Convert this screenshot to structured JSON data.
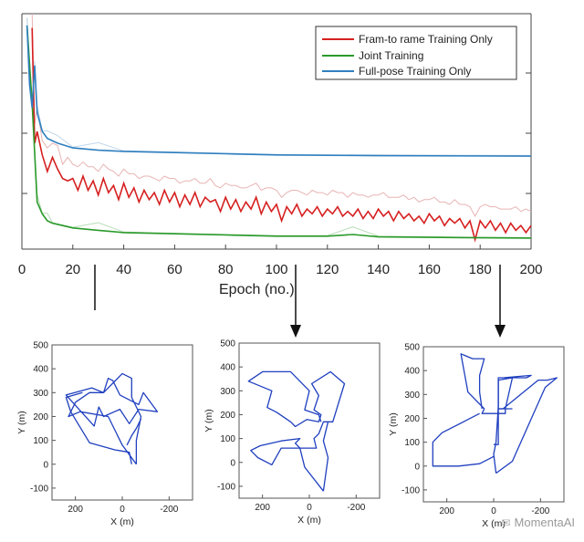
{
  "chart_data": [
    {
      "type": "line",
      "title": "",
      "xlabel": "Epoch (no.)",
      "ylabel": "",
      "xlim": [
        0,
        200
      ],
      "ylim": [
        0,
        1
      ],
      "xticks": [
        "0",
        "20",
        "40",
        "60",
        "80",
        "100",
        "120",
        "140",
        "160",
        "180",
        "200"
      ],
      "grid": false,
      "legend_position": "top-right",
      "series": [
        {
          "name": "Fram-to rame Training Only",
          "color": "#d62020",
          "faint_color": "#e8b4b4",
          "points": [
            [
              4,
              0.94
            ],
            [
              5,
              0.45
            ],
            [
              6,
              0.5
            ],
            [
              8,
              0.4
            ],
            [
              10,
              0.33
            ],
            [
              12,
              0.39
            ],
            [
              14,
              0.34
            ],
            [
              16,
              0.3
            ],
            [
              18,
              0.29
            ],
            [
              20,
              0.3
            ],
            [
              22,
              0.25
            ],
            [
              24,
              0.31
            ],
            [
              26,
              0.25
            ],
            [
              28,
              0.29
            ],
            [
              30,
              0.23
            ],
            [
              32,
              0.3
            ],
            [
              34,
              0.24
            ],
            [
              36,
              0.27
            ],
            [
              38,
              0.21
            ],
            [
              40,
              0.28
            ],
            [
              42,
              0.22
            ],
            [
              44,
              0.26
            ],
            [
              46,
              0.2
            ],
            [
              48,
              0.25
            ],
            [
              50,
              0.21
            ],
            [
              52,
              0.24
            ],
            [
              54,
              0.19
            ],
            [
              56,
              0.25
            ],
            [
              58,
              0.2
            ],
            [
              60,
              0.24
            ],
            [
              62,
              0.18
            ],
            [
              64,
              0.23
            ],
            [
              66,
              0.19
            ],
            [
              68,
              0.24
            ],
            [
              70,
              0.18
            ],
            [
              72,
              0.22
            ],
            [
              74,
              0.2
            ],
            [
              76,
              0.21
            ],
            [
              78,
              0.16
            ],
            [
              80,
              0.22
            ],
            [
              82,
              0.17
            ],
            [
              84,
              0.21
            ],
            [
              86,
              0.16
            ],
            [
              88,
              0.2
            ],
            [
              90,
              0.17
            ],
            [
              92,
              0.22
            ],
            [
              94,
              0.15
            ],
            [
              96,
              0.2
            ],
            [
              98,
              0.16
            ],
            [
              100,
              0.19
            ],
            [
              102,
              0.12
            ],
            [
              104,
              0.18
            ],
            [
              106,
              0.15
            ],
            [
              108,
              0.19
            ],
            [
              110,
              0.14
            ],
            [
              112,
              0.17
            ],
            [
              114,
              0.15
            ],
            [
              116,
              0.18
            ],
            [
              118,
              0.14
            ],
            [
              120,
              0.17
            ],
            [
              122,
              0.15
            ],
            [
              124,
              0.18
            ],
            [
              126,
              0.14
            ],
            [
              128,
              0.16
            ],
            [
              130,
              0.14
            ],
            [
              132,
              0.17
            ],
            [
              134,
              0.13
            ],
            [
              136,
              0.16
            ],
            [
              138,
              0.13
            ],
            [
              140,
              0.17
            ],
            [
              142,
              0.14
            ],
            [
              144,
              0.16
            ],
            [
              146,
              0.12
            ],
            [
              148,
              0.16
            ],
            [
              150,
              0.13
            ],
            [
              152,
              0.15
            ],
            [
              154,
              0.12
            ],
            [
              156,
              0.14
            ],
            [
              158,
              0.11
            ],
            [
              160,
              0.15
            ],
            [
              162,
              0.12
            ],
            [
              164,
              0.14
            ],
            [
              166,
              0.1
            ],
            [
              168,
              0.13
            ],
            [
              170,
              0.11
            ],
            [
              172,
              0.13
            ],
            [
              174,
              0.09
            ],
            [
              176,
              0.12
            ],
            [
              178,
              0.04
            ],
            [
              180,
              0.12
            ],
            [
              182,
              0.09
            ],
            [
              184,
              0.12
            ],
            [
              186,
              0.08
            ],
            [
              188,
              0.11
            ],
            [
              190,
              0.07
            ],
            [
              192,
              0.11
            ],
            [
              194,
              0.08
            ],
            [
              196,
              0.1
            ],
            [
              198,
              0.07
            ],
            [
              200,
              0.1
            ]
          ]
        },
        {
          "name": "Joint Training",
          "color": "#2a9a2a",
          "faint_color": "#b7dcb7",
          "points": [
            [
              2,
              0.95
            ],
            [
              4,
              0.62
            ],
            [
              6,
              0.2
            ],
            [
              8,
              0.15
            ],
            [
              10,
              0.12
            ],
            [
              12,
              0.11
            ],
            [
              16,
              0.1
            ],
            [
              20,
              0.09
            ],
            [
              30,
              0.08
            ],
            [
              40,
              0.07
            ],
            [
              60,
              0.065
            ],
            [
              80,
              0.06
            ],
            [
              100,
              0.055
            ],
            [
              120,
              0.055
            ],
            [
              130,
              0.062
            ],
            [
              140,
              0.052
            ],
            [
              160,
              0.05
            ],
            [
              180,
              0.048
            ],
            [
              200,
              0.047
            ]
          ]
        },
        {
          "name": "Full-pose Training Only",
          "color": "#2f7fbf",
          "faint_color": "#bfd6ea",
          "points": [
            [
              2,
              0.95
            ],
            [
              3,
              0.7
            ],
            [
              4,
              0.6
            ],
            [
              5,
              0.78
            ],
            [
              6,
              0.58
            ],
            [
              8,
              0.5
            ],
            [
              10,
              0.47
            ],
            [
              14,
              0.45
            ],
            [
              20,
              0.43
            ],
            [
              30,
              0.42
            ],
            [
              40,
              0.415
            ],
            [
              60,
              0.41
            ],
            [
              80,
              0.405
            ],
            [
              100,
              0.4
            ],
            [
              140,
              0.397
            ],
            [
              200,
              0.395
            ]
          ]
        }
      ]
    },
    {
      "type": "line",
      "xlabel": "X (m)",
      "ylabel": "Y (m)",
      "xlim": [
        -300,
        300
      ],
      "ylim": [
        -150,
        500
      ],
      "xticks": [
        "200",
        "0",
        "-200"
      ],
      "yticks": [
        "-100",
        "0",
        "100",
        "200",
        "300",
        "400",
        "500"
      ],
      "color": "#1f3fbf",
      "paths": [
        [
          [
            -60,
            0
          ],
          [
            -60,
            100
          ],
          [
            -80,
            200
          ],
          [
            -40,
            280
          ],
          [
            -40,
            360
          ],
          [
            0,
            380
          ],
          [
            80,
            300
          ],
          [
            130,
            320
          ],
          [
            240,
            290
          ],
          [
            120,
            160
          ],
          [
            100,
            240
          ],
          [
            80,
            200
          ],
          [
            10,
            230
          ],
          [
            -30,
            170
          ],
          [
            -70,
            230
          ],
          [
            -150,
            220
          ],
          [
            -90,
            300
          ],
          [
            -70,
            250
          ],
          [
            -30,
            270
          ],
          [
            10,
            290
          ],
          [
            40,
            350
          ],
          [
            60,
            360
          ],
          [
            80,
            300
          ],
          [
            140,
            300
          ],
          [
            200,
            260
          ],
          [
            230,
            200
          ],
          [
            180,
            220
          ],
          [
            60,
            200
          ],
          [
            40,
            160
          ],
          [
            20,
            120
          ],
          [
            0,
            80
          ],
          [
            -60,
            0
          ]
        ],
        [
          [
            -40,
            0
          ],
          [
            -30,
            50
          ],
          [
            30,
            60
          ],
          [
            140,
            90
          ],
          [
            220,
            220
          ],
          [
            240,
            280
          ],
          [
            170,
            300
          ]
        ],
        [
          [
            -80,
            190
          ],
          [
            -60,
            150
          ],
          [
            -40,
            120
          ],
          [
            -20,
            80
          ]
        ]
      ]
    },
    {
      "type": "line",
      "xlabel": "X (m)",
      "ylabel": "Y (m)",
      "xlim": [
        -300,
        300
      ],
      "ylim": [
        -150,
        500
      ],
      "xticks": [
        "200",
        "0",
        "-200"
      ],
      "yticks": [
        "-100",
        "0",
        "100",
        "200",
        "300",
        "400",
        "500"
      ],
      "color": "#1f3fbf",
      "paths": [
        [
          [
            -60,
            -120
          ],
          [
            20,
            -20
          ],
          [
            40,
            60
          ],
          [
            -30,
            60
          ],
          [
            -20,
            100
          ],
          [
            -40,
            120
          ],
          [
            -60,
            170
          ],
          [
            -100,
            170
          ],
          [
            -150,
            330
          ],
          [
            -90,
            380
          ],
          [
            -10,
            330
          ],
          [
            -40,
            280
          ],
          [
            -20,
            220
          ],
          [
            -50,
            200
          ],
          [
            -40,
            170
          ],
          [
            10,
            180
          ],
          [
            60,
            150
          ],
          [
            80,
            170
          ],
          [
            140,
            210
          ],
          [
            180,
            230
          ],
          [
            160,
            300
          ],
          [
            260,
            340
          ],
          [
            200,
            380
          ],
          [
            80,
            380
          ],
          [
            0,
            300
          ],
          [
            20,
            220
          ],
          [
            -40,
            200
          ],
          [
            -50,
            170
          ]
        ],
        [
          [
            40,
            60
          ],
          [
            60,
            80
          ],
          [
            40,
            100
          ],
          [
            120,
            90
          ],
          [
            210,
            70
          ],
          [
            250,
            50
          ],
          [
            220,
            20
          ],
          [
            160,
            -10
          ],
          [
            120,
            60
          ],
          [
            40,
            60
          ]
        ],
        [
          [
            -60,
            -120
          ],
          [
            -80,
            20
          ],
          [
            -60,
            90
          ],
          [
            -80,
            170
          ]
        ]
      ]
    },
    {
      "type": "line",
      "xlabel": "X (m)",
      "ylabel": "Y (m)",
      "xlim": [
        -300,
        300
      ],
      "ylim": [
        -150,
        500
      ],
      "xticks": [
        "200",
        "0",
        "-200"
      ],
      "yticks": [
        "-100",
        "0",
        "100",
        "200",
        "300",
        "400",
        "500"
      ],
      "color": "#1f3fbf",
      "paths": [
        [
          [
            -10,
            -30
          ],
          [
            -80,
            20
          ],
          [
            -220,
            330
          ],
          [
            -270,
            370
          ],
          [
            -230,
            360
          ],
          [
            -190,
            360
          ],
          [
            -40,
            240
          ],
          [
            -20,
            240
          ],
          [
            -20,
            360
          ],
          [
            -80,
            370
          ],
          [
            -50,
            240
          ],
          [
            -50,
            220
          ],
          [
            50,
            220
          ],
          [
            40,
            240
          ],
          [
            110,
            310
          ],
          [
            140,
            470
          ],
          [
            90,
            450
          ],
          [
            40,
            450
          ],
          [
            60,
            380
          ],
          [
            60,
            310
          ],
          [
            50,
            240
          ]
        ],
        [
          [
            -10,
            -30
          ],
          [
            0,
            50
          ],
          [
            -10,
            100
          ],
          [
            -20,
            250
          ],
          [
            -20,
            370
          ],
          [
            -140,
            370
          ],
          [
            -160,
            380
          ],
          [
            -40,
            370
          ]
        ],
        [
          [
            60,
            220
          ],
          [
            120,
            190
          ],
          [
            220,
            140
          ],
          [
            260,
            100
          ],
          [
            260,
            0
          ],
          [
            150,
            0
          ],
          [
            60,
            10
          ],
          [
            0,
            40
          ]
        ],
        [
          [
            -80,
            240
          ],
          [
            -20,
            240
          ],
          [
            -20,
            90
          ],
          [
            0,
            90
          ]
        ]
      ]
    }
  ],
  "watermark": {
    "text": "MomentaAI",
    "icon": "wechat-icon"
  }
}
